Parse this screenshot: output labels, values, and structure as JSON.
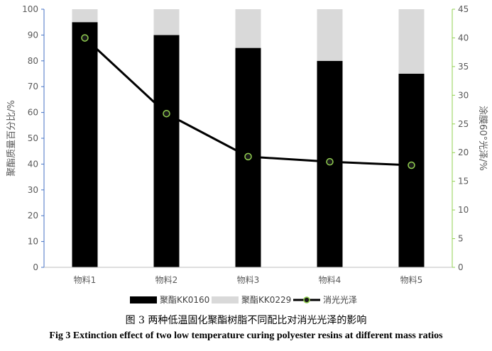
{
  "chart_data": {
    "type": "bar",
    "stacked": true,
    "categories": [
      "物料1",
      "物料2",
      "物料3",
      "物料4",
      "物料5"
    ],
    "series": [
      {
        "name": "聚酯KK0160",
        "type": "bar",
        "axis": "left",
        "color": "#000000",
        "values": [
          95,
          90,
          85,
          80,
          75
        ]
      },
      {
        "name": "聚酯KK0229",
        "type": "bar",
        "axis": "left",
        "color": "#d9d9d9",
        "values": [
          5,
          10,
          15,
          20,
          25
        ]
      },
      {
        "name": "消光光泽",
        "type": "line",
        "axis": "right",
        "color": "#000000",
        "marker_color": "#92d050",
        "values": [
          40.0,
          26.8,
          19.3,
          18.4,
          17.8
        ]
      }
    ],
    "y_left": {
      "label": "聚酯质量百分比/%",
      "range": [
        0,
        100
      ],
      "ticks": [
        0,
        10,
        20,
        30,
        40,
        50,
        60,
        70,
        80,
        90,
        100
      ],
      "axis_color": "#4472c4"
    },
    "y_right": {
      "label": "涂膜60°光泽/%",
      "range": [
        0,
        45
      ],
      "ticks": [
        0,
        5,
        10,
        15,
        20,
        25,
        30,
        35,
        40,
        45
      ],
      "axis_color": "#92d050"
    },
    "legend": {
      "position": "bottom",
      "entries": [
        "聚酯KK0160",
        "聚酯KK0229",
        "消光光泽"
      ]
    },
    "grid": false
  },
  "caption": {
    "cn": "图 3  两种低温固化聚酯树脂不同配比对消光光泽的影响",
    "en": "Fig 3 Extinction effect of two low temperature curing polyester resins at different mass ratios"
  }
}
